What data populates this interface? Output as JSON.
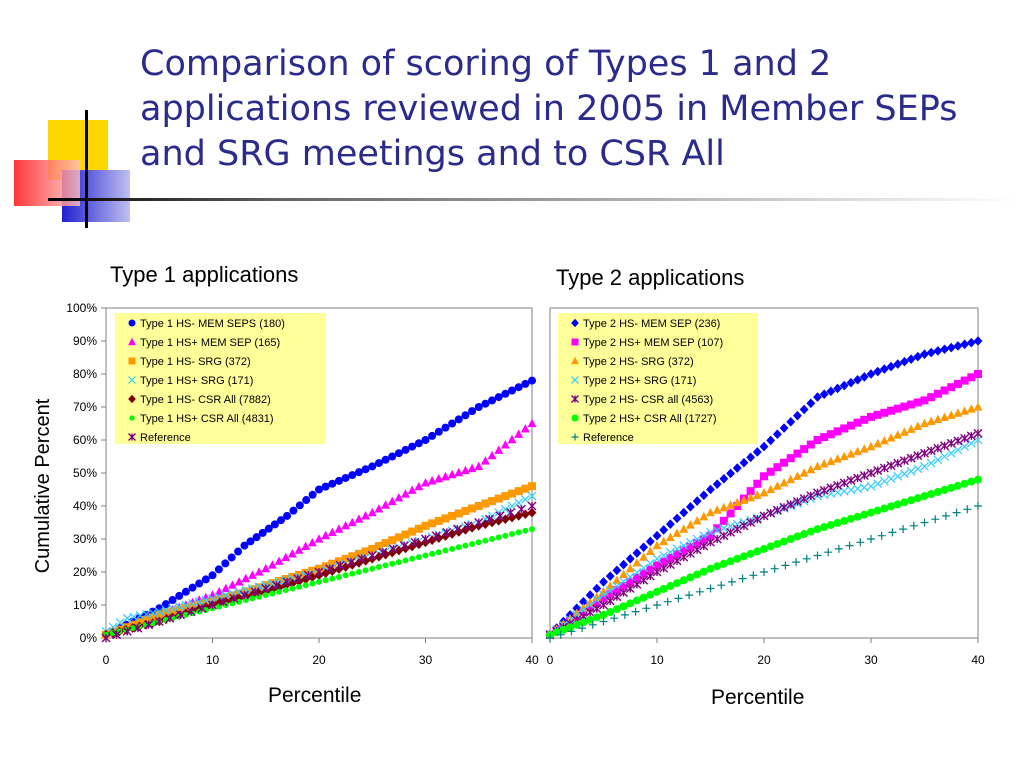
{
  "title": "Comparison of scoring of Types 1 and 2 applications reviewed in 2005 in Member SEPs and SRG meetings and to CSR All",
  "y_axis_label": "Cumulative Percent",
  "chart_data": [
    {
      "type": "scatter",
      "title": "Type 1 applications",
      "xlabel": "Percentile",
      "ylabel": "Cumulative Percent",
      "xlim": [
        0,
        40
      ],
      "ylim": [
        0,
        100
      ],
      "x_ticks": [
        "0",
        "10",
        "20",
        "30",
        "40"
      ],
      "y_ticks": [
        "0%",
        "10%",
        "20%",
        "30%",
        "40%",
        "50%",
        "60%",
        "70%",
        "80%",
        "90%",
        "100%"
      ],
      "legend_position": "top-left",
      "series": [
        {
          "name": "Type 1 HS- MEM SEPS (180)",
          "marker": "circle",
          "color": "#0000FF",
          "x": [
            0,
            5,
            10,
            13,
            17,
            20,
            25,
            30,
            35,
            40
          ],
          "y": [
            1,
            9,
            19,
            28,
            37,
            45,
            52,
            60,
            70,
            78
          ]
        },
        {
          "name": "Type 1 HS+ MEM SEP  (165)",
          "marker": "triangle",
          "color": "#FF00FF",
          "x": [
            0,
            5,
            10,
            15,
            20,
            25,
            30,
            35,
            40
          ],
          "y": [
            1,
            7,
            13,
            21,
            30,
            38,
            47,
            52,
            65
          ]
        },
        {
          "name": "Type 1 HS- SRG  (372)",
          "marker": "square",
          "color": "#FF9900",
          "x": [
            0,
            5,
            10,
            15,
            20,
            25,
            30,
            35,
            40
          ],
          "y": [
            1,
            7,
            11,
            16,
            21,
            27,
            34,
            40,
            46
          ]
        },
        {
          "name": "Type 1 HS+ SRG  (171)",
          "marker": "x",
          "color": "#33CCFF",
          "x": [
            0,
            2,
            5,
            10,
            15,
            20,
            25,
            30,
            35,
            40
          ],
          "y": [
            2,
            6,
            8,
            12,
            16,
            20,
            25,
            30,
            35,
            43
          ]
        },
        {
          "name": "Type 1 HS- CSR All  (7882)",
          "marker": "diamond",
          "color": "#800000",
          "x": [
            0,
            5,
            10,
            15,
            20,
            25,
            30,
            35,
            40
          ],
          "y": [
            1,
            5,
            10,
            14,
            19,
            24,
            29,
            34,
            38
          ]
        },
        {
          "name": "Type 1 HS+ CSR All  (4831)",
          "marker": "circle-small",
          "color": "#00FF00",
          "x": [
            0,
            5,
            10,
            15,
            20,
            25,
            30,
            35,
            40
          ],
          "y": [
            1,
            5,
            9,
            13,
            17,
            21,
            25,
            29,
            33
          ]
        },
        {
          "name": "Reference",
          "marker": "star",
          "color": "#800080",
          "x": [
            0,
            5,
            10,
            15,
            20,
            25,
            30,
            35,
            40
          ],
          "y": [
            0,
            5,
            10,
            15,
            20,
            25,
            30,
            35,
            40
          ]
        }
      ]
    },
    {
      "type": "scatter",
      "title": "Type 2 applications",
      "xlabel": "Percentile",
      "ylabel": "Cumulative Percent",
      "xlim": [
        0,
        40
      ],
      "ylim": [
        0,
        100
      ],
      "x_ticks": [
        "0",
        "10",
        "20",
        "30",
        "40"
      ],
      "legend_position": "top-left",
      "series": [
        {
          "name": "Type 2 HS- MEM SEP   (236)",
          "marker": "diamond",
          "color": "#0000FF",
          "x": [
            0,
            5,
            10,
            15,
            20,
            25,
            30,
            35,
            40
          ],
          "y": [
            1,
            17,
            31,
            45,
            58,
            73,
            80,
            86,
            90
          ]
        },
        {
          "name": "Type 2 HS+ MEM SEP  (107)",
          "marker": "square",
          "color": "#FF00FF",
          "x": [
            0,
            5,
            10,
            15,
            20,
            25,
            30,
            35,
            40
          ],
          "y": [
            1,
            12,
            22,
            31,
            49,
            60,
            67,
            72,
            80
          ]
        },
        {
          "name": "Type 2 HS- SRG  (372)",
          "marker": "triangle",
          "color": "#FF9900",
          "x": [
            0,
            5,
            10,
            15,
            20,
            25,
            30,
            35,
            40
          ],
          "y": [
            1,
            14,
            28,
            38,
            44,
            52,
            58,
            65,
            70
          ]
        },
        {
          "name": "Type 2 HS+ SRG  (171)",
          "marker": "x",
          "color": "#33CCFF",
          "x": [
            0,
            5,
            10,
            15,
            20,
            25,
            30,
            35,
            40
          ],
          "y": [
            1,
            13,
            24,
            32,
            37,
            43,
            46,
            52,
            60
          ]
        },
        {
          "name": "Type 2 HS- CSR all  (4563)",
          "marker": "star",
          "color": "#800080",
          "x": [
            0,
            5,
            10,
            15,
            20,
            25,
            30,
            35,
            40
          ],
          "y": [
            1,
            10,
            20,
            29,
            37,
            44,
            50,
            56,
            62
          ]
        },
        {
          "name": "Type 2 HS+ CSR All  (1727)",
          "marker": "circle",
          "color": "#00FF00",
          "x": [
            0,
            5,
            10,
            15,
            20,
            25,
            30,
            35,
            40
          ],
          "y": [
            1,
            7,
            14,
            21,
            27,
            33,
            38,
            43,
            48
          ]
        },
        {
          "name": "Reference",
          "marker": "plus",
          "color": "#008080",
          "x": [
            0,
            5,
            10,
            15,
            20,
            25,
            30,
            35,
            40
          ],
          "y": [
            0,
            5,
            10,
            15,
            20,
            25,
            30,
            35,
            40
          ]
        }
      ]
    }
  ]
}
